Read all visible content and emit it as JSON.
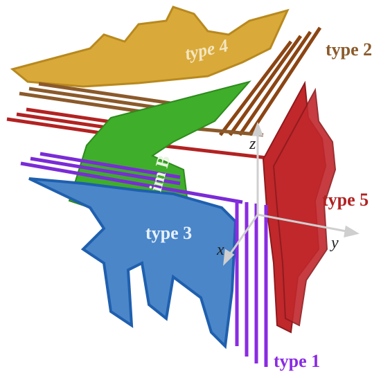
{
  "labels": {
    "type4": "type 4",
    "type2": "type 2",
    "type5": "type 5",
    "type3": "type 3",
    "type1": "type 1",
    "imB": "im B",
    "x": "x",
    "y": "y",
    "z": "z"
  }
}
